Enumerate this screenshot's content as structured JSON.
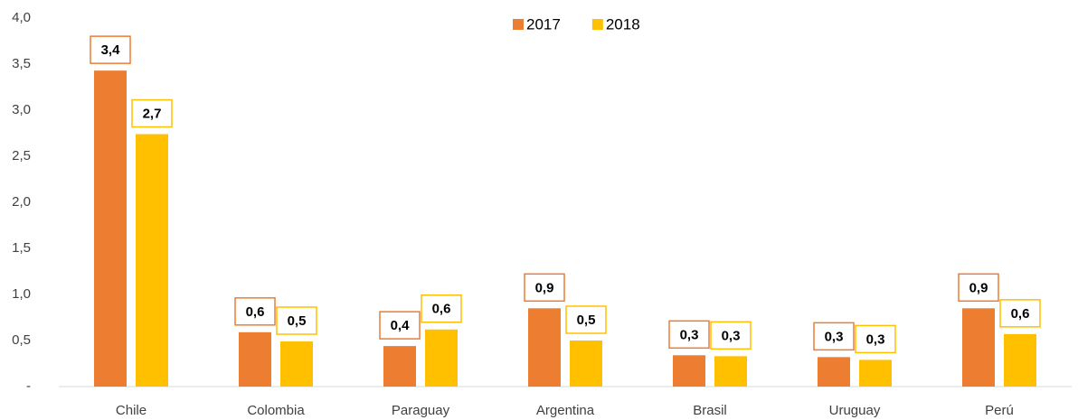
{
  "chart_data": {
    "type": "bar",
    "categories": [
      "Chile",
      "Colombia",
      "Paraguay",
      "Argentina",
      "Brasil",
      "Uruguay",
      "Perú"
    ],
    "series": [
      {
        "name": "2017",
        "color": "#ED7D31",
        "values": [
          3.43,
          0.59,
          0.44,
          0.85,
          0.34,
          0.32,
          0.85
        ],
        "value_labels": [
          "3,4",
          "0,6",
          "0,4",
          "0,9",
          "0,3",
          "0,3",
          "0,9"
        ]
      },
      {
        "name": "2018",
        "color": "#FFC000",
        "values": [
          2.74,
          0.49,
          0.62,
          0.5,
          0.33,
          0.29,
          0.57
        ],
        "value_labels": [
          "2,7",
          "0,5",
          "0,6",
          "0,5",
          "0,3",
          "0,3",
          "0,6"
        ]
      }
    ],
    "ylim": [
      0,
      4
    ],
    "yticks": [
      {
        "value": 0,
        "label": "-"
      },
      {
        "value": 0.5,
        "label": "0,5"
      },
      {
        "value": 1,
        "label": "1,0"
      },
      {
        "value": 1.5,
        "label": "1,5"
      },
      {
        "value": 2,
        "label": "2,0"
      },
      {
        "value": 2.5,
        "label": "2,5"
      },
      {
        "value": 3,
        "label": "3,0"
      },
      {
        "value": 3.5,
        "label": "3,5"
      },
      {
        "value": 4,
        "label": "4,0"
      }
    ],
    "legend": "top",
    "grid": false
  }
}
